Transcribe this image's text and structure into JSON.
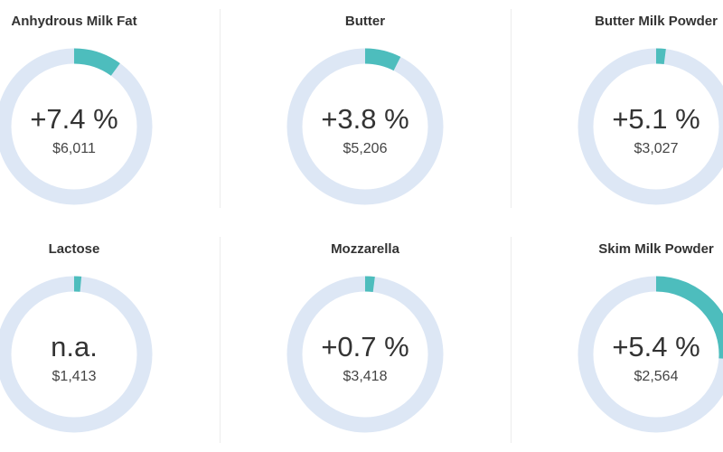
{
  "chart_data": [
    {
      "type": "gauge",
      "title": "Anhydrous Milk Fat",
      "value": 10,
      "center_text": "+7.4 %",
      "subtitle": "$6,011",
      "color": "#4dbdbd",
      "track_color": "#dde7f5"
    },
    {
      "type": "gauge",
      "title": "Butter",
      "value": 7.5,
      "center_text": "+3.8 %",
      "subtitle": "$5,206",
      "color": "#4dbdbd",
      "track_color": "#dde7f5"
    },
    {
      "type": "gauge",
      "title": "Butter Milk Powder",
      "value": 2,
      "center_text": "+5.1 %",
      "subtitle": "$3,027",
      "color": "#4dbdbd",
      "track_color": "#dde7f5"
    },
    {
      "type": "gauge",
      "title": "Lactose",
      "value": 1.5,
      "center_text": "n.a.",
      "subtitle": "$1,413",
      "color": "#4dbdbd",
      "track_color": "#dde7f5"
    },
    {
      "type": "gauge",
      "title": "Mozzarella",
      "value": 2,
      "center_text": "+0.7 %",
      "subtitle": "$3,418",
      "color": "#4dbdbd",
      "track_color": "#dde7f5"
    },
    {
      "type": "gauge",
      "title": "Skim Milk Powder",
      "value": 26,
      "center_text": "+5.4 %",
      "subtitle": "$2,564",
      "color": "#4dbdbd",
      "track_color": "#dde7f5"
    }
  ]
}
